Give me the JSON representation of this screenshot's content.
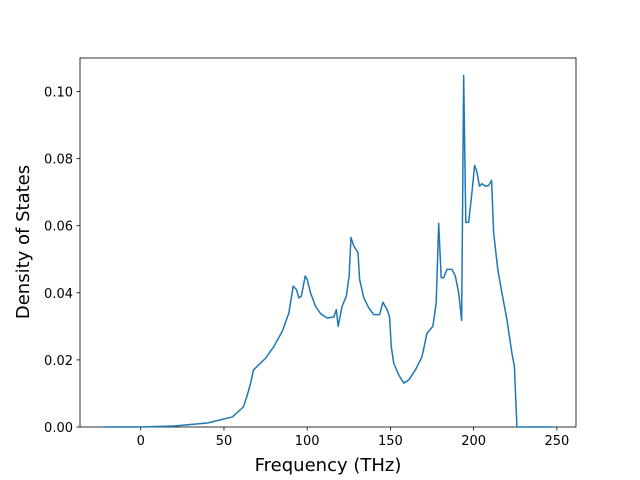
{
  "chart_data": {
    "type": "line",
    "xlabel": "Frequency (THz)",
    "ylabel": "Density of States",
    "x": [
      -23,
      0,
      20,
      40,
      55,
      61.7,
      64,
      66,
      67.7,
      75,
      80,
      85,
      89,
      91.6,
      93.5,
      95,
      96.5,
      98.8,
      100,
      102,
      105,
      108,
      112,
      116,
      117.5,
      118.6,
      121,
      123.5,
      125.2,
      126.3,
      128,
      130.5,
      131.5,
      134,
      137,
      140,
      143.5,
      145.5,
      148,
      149.5,
      150.5,
      152,
      155,
      158,
      161,
      165,
      169,
      172,
      175.5,
      177.5,
      179,
      180.5,
      182,
      184,
      187,
      189,
      191,
      192.8,
      194,
      195.3,
      197,
      199,
      200.6,
      202,
      203.5,
      205,
      207,
      209,
      210.8,
      212,
      214.5,
      217,
      220,
      223,
      224.5,
      226,
      248
    ],
    "values": [
      0,
      0,
      0.0003,
      0.0012,
      0.003,
      0.006,
      0.0095,
      0.013,
      0.017,
      0.0205,
      0.024,
      0.0285,
      0.034,
      0.042,
      0.041,
      0.0385,
      0.039,
      0.045,
      0.044,
      0.04,
      0.036,
      0.0338,
      0.0325,
      0.0328,
      0.035,
      0.03,
      0.036,
      0.039,
      0.045,
      0.0565,
      0.054,
      0.052,
      0.044,
      0.0385,
      0.0355,
      0.0335,
      0.0335,
      0.0372,
      0.035,
      0.0328,
      0.024,
      0.019,
      0.0155,
      0.0131,
      0.014,
      0.017,
      0.021,
      0.028,
      0.03,
      0.037,
      0.0607,
      0.0445,
      0.0445,
      0.047,
      0.047,
      0.045,
      0.04,
      0.0318,
      0.1048,
      0.061,
      0.061,
      0.07,
      0.078,
      0.076,
      0.0718,
      0.0725,
      0.0718,
      0.072,
      0.0735,
      0.058,
      0.047,
      0.04,
      0.032,
      0.022,
      0.018,
      0,
      0
    ],
    "color": "#1f77b4",
    "xlim": [
      -36.5,
      261.5
    ],
    "xticks": [
      0,
      50,
      100,
      150,
      200,
      250
    ],
    "ylim": [
      0,
      0.11
    ],
    "yticks": [
      {
        "value": 0,
        "label": "0.00"
      },
      {
        "value": 0.02,
        "label": "0.02"
      },
      {
        "value": 0.04,
        "label": "0.04"
      },
      {
        "value": 0.06,
        "label": "0.06"
      },
      {
        "value": 0.08,
        "label": "0.08"
      },
      {
        "value": 0.1,
        "label": "0.10"
      }
    ]
  }
}
